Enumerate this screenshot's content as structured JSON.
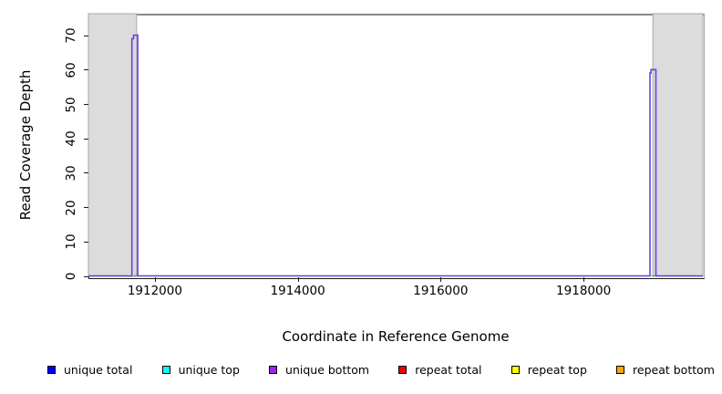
{
  "figure": {
    "x_axis_title": "Coordinate in Reference Genome",
    "y_axis_title": "Read Coverage Depth"
  },
  "chart_data": {
    "type": "line",
    "title": "",
    "xlabel": "Coordinate in Reference Genome",
    "ylabel": "Read Coverage Depth",
    "xlim": [
      1911070,
      1919670
    ],
    "ylim": [
      0,
      76.4
    ],
    "grid": false,
    "legend_position": "bottom",
    "x_ticks": [
      1912000,
      1914000,
      1916000,
      1918000
    ],
    "x_tick_labels": [
      "1912000",
      "1914000",
      "1916000",
      "1918000"
    ],
    "y_ticks": [
      0,
      10,
      20,
      30,
      40,
      50,
      60,
      70
    ],
    "y_tick_labels": [
      "0",
      "10",
      "20",
      "30",
      "40",
      "50",
      "60",
      "70"
    ],
    "shaded_regions": [
      {
        "name": "left-masked-region",
        "x0": 1911070,
        "x1": 1911745,
        "fill": "#dcdcdc",
        "stroke": "#a9a9a9"
      },
      {
        "name": "right-masked-region",
        "x0": 1918970,
        "x1": 1919670,
        "fill": "#dcdcdc",
        "stroke": "#a9a9a9"
      }
    ],
    "series": [
      {
        "name": "unique bottom coverage (visible trace)",
        "color": "#6b3fe0",
        "points": [
          [
            1911070,
            0
          ],
          [
            1911678,
            0
          ],
          [
            1911678,
            69
          ],
          [
            1911702,
            69
          ],
          [
            1911702,
            70
          ],
          [
            1911760,
            70
          ],
          [
            1911760,
            0
          ],
          [
            1918930,
            0
          ],
          [
            1918930,
            59
          ],
          [
            1918944,
            59
          ],
          [
            1918944,
            60
          ],
          [
            1919013,
            60
          ],
          [
            1919013,
            0
          ],
          [
            1919670,
            0
          ]
        ]
      }
    ],
    "baseline_overlap_segments": {
      "comment": "short green-looking baseline segments visible under each spike",
      "color": "#58b758",
      "segments": [
        {
          "x0": 1911700,
          "x1": 1911752,
          "y": 0
        },
        {
          "x0": 1918950,
          "x1": 1918998,
          "y": 0
        }
      ]
    },
    "peaks": [
      {
        "x_start": 1911678,
        "x_end": 1911760,
        "max_depth": 70
      },
      {
        "x_start": 1918930,
        "x_end": 1919013,
        "max_depth": 60
      }
    ],
    "legend": [
      {
        "label": "unique total",
        "color": "#0000ff"
      },
      {
        "label": "unique top",
        "color": "#00ffff"
      },
      {
        "label": "unique bottom",
        "color": "#a020f0"
      },
      {
        "label": "repeat total",
        "color": "#ee0000"
      },
      {
        "label": "repeat top",
        "color": "#ffff00"
      },
      {
        "label": "repeat bottom",
        "color": "#ffa500"
      }
    ]
  }
}
